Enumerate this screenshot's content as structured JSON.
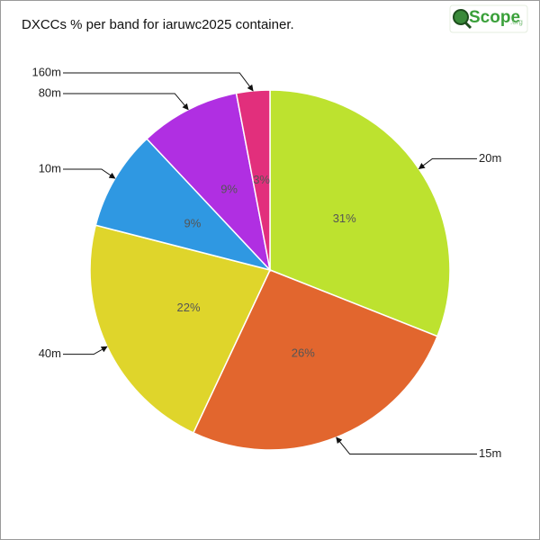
{
  "chart_data": {
    "type": "pie",
    "title": "DXCCs % per band for iaruwc2025 container.",
    "categories": [
      "20m",
      "15m",
      "40m",
      "10m",
      "80m",
      "160m"
    ],
    "values": [
      31,
      26,
      22,
      9,
      9,
      3
    ],
    "value_labels": [
      "31%",
      "26%",
      "22%",
      "9%",
      "9%",
      "3%"
    ],
    "colors": [
      "#bde22f",
      "#e2662e",
      "#dfd52b",
      "#2f98e2",
      "#b02fe2",
      "#e22f7c"
    ]
  },
  "logo": {
    "text": "Scope",
    "suffix": ".org"
  }
}
